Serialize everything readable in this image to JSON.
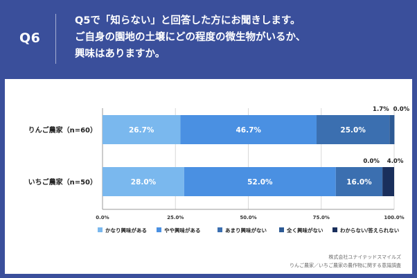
{
  "header": {
    "question_label": "Q6",
    "question_lines": [
      "Q5で「知らない」と回答した方にお聞きします。",
      "ご自身の園地の土壌にどの程度の微生物がいるか、",
      "興味はありますか。"
    ]
  },
  "chart_data": {
    "type": "bar",
    "orientation": "horizontal",
    "stacked": true,
    "categories": [
      "りんご農家（n=60）",
      "いちご農家（n=50）"
    ],
    "series": [
      {
        "name": "かなり興味がある",
        "values": [
          26.7,
          28.0
        ],
        "color": "#7ab8ee"
      },
      {
        "name": "やや興味がある",
        "values": [
          46.7,
          52.0
        ],
        "color": "#4a90e2"
      },
      {
        "name": "あまり興味がない",
        "values": [
          25.0,
          16.0
        ],
        "color": "#3b6fb0"
      },
      {
        "name": "全く興味がない",
        "values": [
          1.7,
          0.0
        ],
        "color": "#2d5a94"
      },
      {
        "name": "わからない/答えられない",
        "values": [
          0.0,
          4.0
        ],
        "color": "#1a2f5c"
      }
    ],
    "value_labels": [
      [
        "26.7%",
        "46.7%",
        "25.0%",
        "1.7%",
        "0.0%"
      ],
      [
        "28.0%",
        "52.0%",
        "16.0%",
        "0.0%",
        "4.0%"
      ]
    ],
    "xlim": [
      0,
      100
    ],
    "x_ticks": [
      "0.0%",
      "25.0%",
      "50.0%",
      "75.0%",
      "100.0%"
    ],
    "grid": true,
    "legend_position": "bottom"
  },
  "footer": {
    "company": "株式会社ユナイテッドスマイルズ",
    "survey": "りんご農家／いちご農家の農作物に関する意識調査"
  }
}
